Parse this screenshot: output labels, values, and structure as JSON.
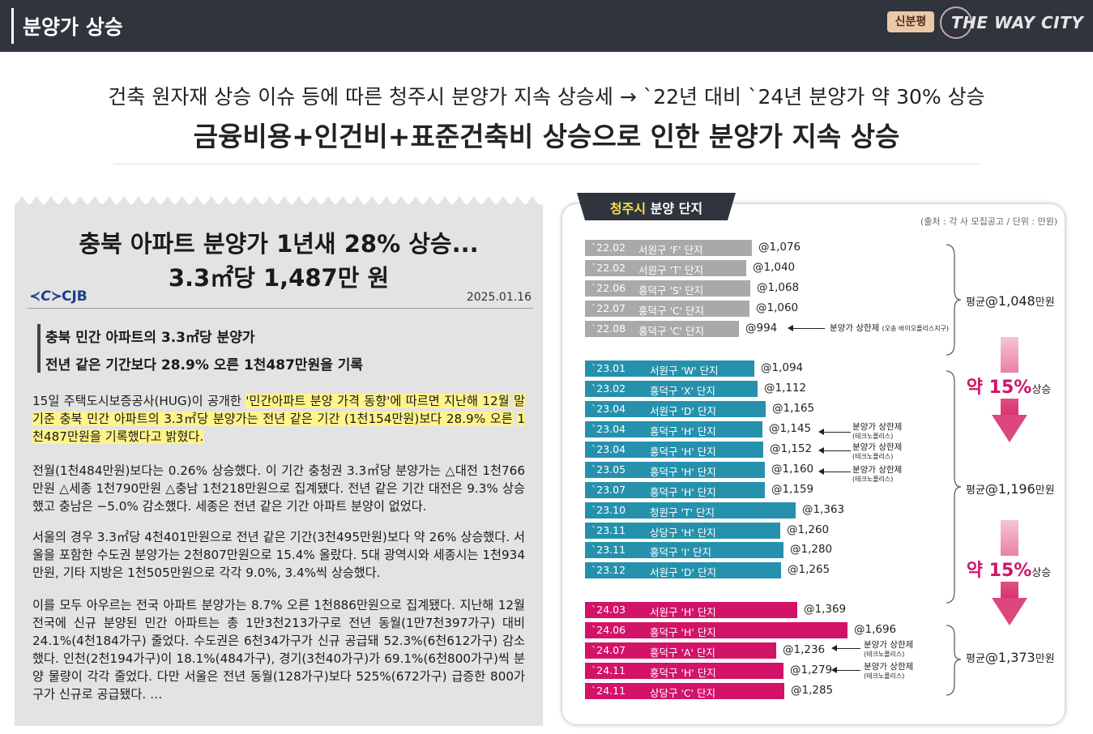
{
  "header": {
    "title": "분양가 상승",
    "badge": "신분평",
    "brand": "THE WAY CITY"
  },
  "headline": {
    "line1": "건축 원자재 상승 이슈 등에 따른 청주시 분양가 지속 상승세 → `22년 대비 `24년 분양가 약 30% 상승",
    "line2": "금융비용+인건비+표준건축비 상승으로 인한 분양가 지속 상승"
  },
  "article": {
    "title_line1": "충북 아파트 분양가 1년새 28% 상승...",
    "title_line2": "3.3㎡당 1,487만 원",
    "outlet": "CJB",
    "date": "2025.01.16",
    "subtitle_line1": "충북 민간 아파트의 3.3㎡당 분양가",
    "subtitle_line2": "전년 같은 기간보다 28.9% 오른 1천487만원을 기록",
    "p1_pre": "15일 주택도시보증공사(HUG)이 공개한 ",
    "p1_hl1": "'민간아파트 분양 가격 동향'에 따르면 지난해 12월",
    "p1_hl2": "말 기준 충북 민간 아파트의 3.3㎡당 분양가는 전년 같은 기간 (1천154만원)보다 28.9% 오른",
    "p1_hl3": "1천487만원을 기록했다고 밝혔다.",
    "p2": "전월(1천484만원)보다는 0.26% 상승했다. 이 기간 충청권 3.3㎡당 분양가는 △대전 1천766만원 △세종 1천790만원 △충남 1천218만원으로 집계됐다. 전년 같은 기간 대전은 9.3% 상승했고 충남은 −5.0% 감소했다. 세종은 전년 같은 기간 아파트 분양이 없었다.",
    "p3": "서울의 경우 3.3㎡당 4천401만원으로 전년 같은 기간(3천495만원)보다 약 26% 상승했다. 서울을 포함한 수도권 분양가는 2천807만원으로 15.4% 올랐다. 5대 광역시와 세종시는 1천934만원, 기타 지방은 1천505만원으로 각각 9.0%, 3.4%씩 상승했다.",
    "p4": " 이를 모두 아우르는 전국 아파트 분양가는 8.7% 오른 1천886만원으로 집계됐다. 지난해 12월 전국에 신규 분양된 민간 아파트는 총 1만3천213가구로 전년 동월(1만7천397가구) 대비 24.1%(4천184가구) 줄었다. 수도권은 6천34가구가 신규 공급돼 52.3%(6천612가구) 감소했다. 인천(2천194가구)이 18.1%(484가구), 경기(3천40가구)가 69.1%(6천800가구)씩 분양 물량이 각각 줄었다. 다만 서울은 전년 동월(128가구)보다 525%(672가구) 급증한 800가구가 신규로 공급됐다. …"
  },
  "chart_panel": {
    "tab_city": "청주시",
    "tab_rest": " 분양 단지",
    "source": "(출처 : 각 사 모집공고 / 단위 : 만원)",
    "avg_label": "평균",
    "avg_unit": "만원",
    "averages": [
      "@1,048",
      "@1,196",
      "@1,373"
    ],
    "rise_1": "약 15%",
    "rise_2": "약 15%",
    "rise_suffix": "상승",
    "notes": {
      "n1_main": "분양가 상한제",
      "n1_sub": "(오송 바이오폴리스지구)",
      "n_main": "분양가 상한제",
      "n_sub": "(테크노폴리스)"
    },
    "colors": {
      "2022": "#a9a9a9",
      "2023": "#2591ad",
      "2024": "#d21368",
      "accent": "#d21368"
    }
  },
  "chart_data": {
    "type": "bar",
    "title": "청주시 분양 단지",
    "unit": "만원",
    "rows": [
      {
        "period": "`22.02",
        "name": "서원구 'F' 단지",
        "value": 1076,
        "label": "@1,076"
      },
      {
        "period": "`22.02",
        "name": "서원구 'T' 단지",
        "value": 1040,
        "label": "@1,040"
      },
      {
        "period": "`22.06",
        "name": "흥덕구 'S' 단지",
        "value": 1068,
        "label": "@1,068"
      },
      {
        "period": "`22.07",
        "name": "흥덕구 'C' 단지",
        "value": 1060,
        "label": "@1,060"
      },
      {
        "period": "`22.08",
        "name": "흥덕구 'C' 단지",
        "value": 994,
        "label": "@994"
      },
      {
        "period": "`23.01",
        "name": "서원구 'W' 단지",
        "value": 1094,
        "label": "@1,094"
      },
      {
        "period": "`23.02",
        "name": "흥덕구 'X' 단지",
        "value": 1112,
        "label": "@1,112"
      },
      {
        "period": "`23.04",
        "name": "서원구 'D' 단지",
        "value": 1165,
        "label": "@1,165"
      },
      {
        "period": "`23.04",
        "name": "흥덕구 'H' 단지",
        "value": 1145,
        "label": "@1,145"
      },
      {
        "period": "`23.04",
        "name": "흥덕구 'H' 단지",
        "value": 1152,
        "label": "@1,152"
      },
      {
        "period": "`23.05",
        "name": "흥덕구 'H' 단지",
        "value": 1160,
        "label": "@1,160"
      },
      {
        "period": "`23.07",
        "name": "흥덕구 'H' 단지",
        "value": 1159,
        "label": "@1,159"
      },
      {
        "period": "`23.10",
        "name": "청원구 'T' 단지",
        "value": 1363,
        "label": "@1,363"
      },
      {
        "period": "`23.11",
        "name": "상당구 'H' 단지",
        "value": 1260,
        "label": "@1,260"
      },
      {
        "period": "`23.11",
        "name": "흥덕구 'I' 단지",
        "value": 1280,
        "label": "@1,280"
      },
      {
        "period": "`23.12",
        "name": "서원구 'D' 단지",
        "value": 1265,
        "label": "@1,265"
      },
      {
        "period": "`24.03",
        "name": "서원구 'H' 단지",
        "value": 1369,
        "label": "@1,369"
      },
      {
        "period": "`24.06",
        "name": "흥덕구 'H' 단지",
        "value": 1696,
        "label": "@1,696"
      },
      {
        "period": "`24.07",
        "name": "흥덕구 'A' 단지",
        "value": 1236,
        "label": "@1,236"
      },
      {
        "period": "`24.11",
        "name": "흥덕구 'H' 단지",
        "value": 1279,
        "label": "@1,279"
      },
      {
        "period": "`24.11",
        "name": "상당구 'C' 단지",
        "value": 1285,
        "label": "@1,285"
      }
    ]
  }
}
